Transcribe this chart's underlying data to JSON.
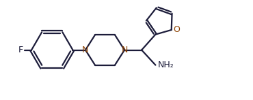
{
  "background": "#ffffff",
  "bond_color": "#1c1c3a",
  "N_color": "#8B4000",
  "O_color": "#8B4000",
  "F_color": "#1c1c3a",
  "NH2_color": "#1c1c3a",
  "line_width": 1.6,
  "figsize": [
    3.7,
    1.47
  ],
  "dpi": 100,
  "xlim": [
    0,
    10
  ],
  "ylim": [
    0.5,
    4.0
  ]
}
